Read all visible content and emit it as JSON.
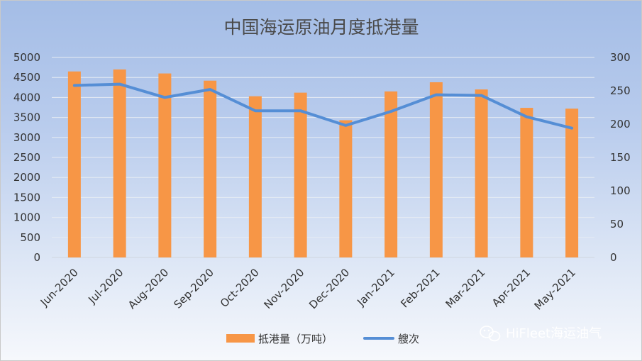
{
  "chart_data": {
    "type": "bar",
    "title": "中国海运原油月度抵港量",
    "categories": [
      "Jun-2020",
      "Jul-2020",
      "Aug-2020",
      "Sep-2020",
      "Oct-2020",
      "Nov-2020",
      "Dec-2020",
      "Jan-2021",
      "Feb-2021",
      "Mar-2021",
      "Apr-2021",
      "May-2021"
    ],
    "series": [
      {
        "name": "抵港量（万吨）",
        "type": "bar",
        "axis": "left",
        "color": "#f79646",
        "values": [
          4650,
          4700,
          4600,
          4420,
          4030,
          4120,
          3430,
          4150,
          4380,
          4200,
          3740,
          3720
        ]
      },
      {
        "name": "艘次",
        "type": "line",
        "axis": "right",
        "color": "#558ed5",
        "values": [
          258,
          260,
          240,
          252,
          220,
          220,
          198,
          219,
          244,
          243,
          211,
          194
        ]
      }
    ],
    "y_left": {
      "ylim": [
        0,
        5000
      ],
      "ticks": [
        0,
        500,
        1000,
        1500,
        2000,
        2500,
        3000,
        3500,
        4000,
        4500,
        5000
      ]
    },
    "y_right": {
      "ylim": [
        0,
        300
      ],
      "ticks": [
        0,
        50,
        100,
        150,
        200,
        250,
        300
      ]
    },
    "grid": true,
    "legend_position": "bottom"
  },
  "watermark": {
    "text": "HiFleet海运油气",
    "icon": "wechat-icon"
  }
}
